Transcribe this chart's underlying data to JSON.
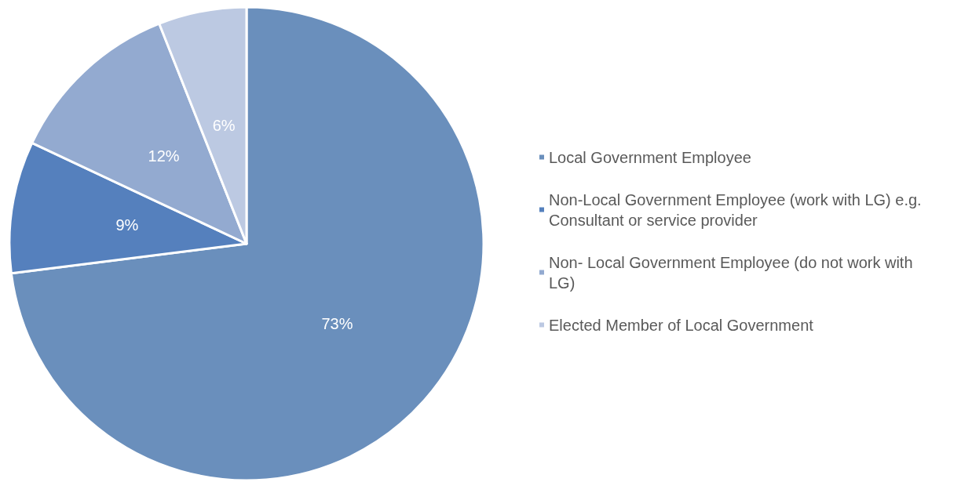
{
  "chart_data": {
    "type": "pie",
    "categories": [
      "Local Government Employee",
      "Non-Local Government Employee (work with LG) e.g. Consultant or service provider",
      "Non- Local Government Employee (do not work with LG)",
      "Elected Member of Local Government"
    ],
    "values": [
      73,
      9,
      12,
      6
    ],
    "value_labels": [
      "73%",
      "9%",
      "12%",
      "6%"
    ],
    "colors": [
      "#6a8fbc",
      "#5580bd",
      "#93aad0",
      "#bcc9e2"
    ],
    "legend": "right"
  }
}
